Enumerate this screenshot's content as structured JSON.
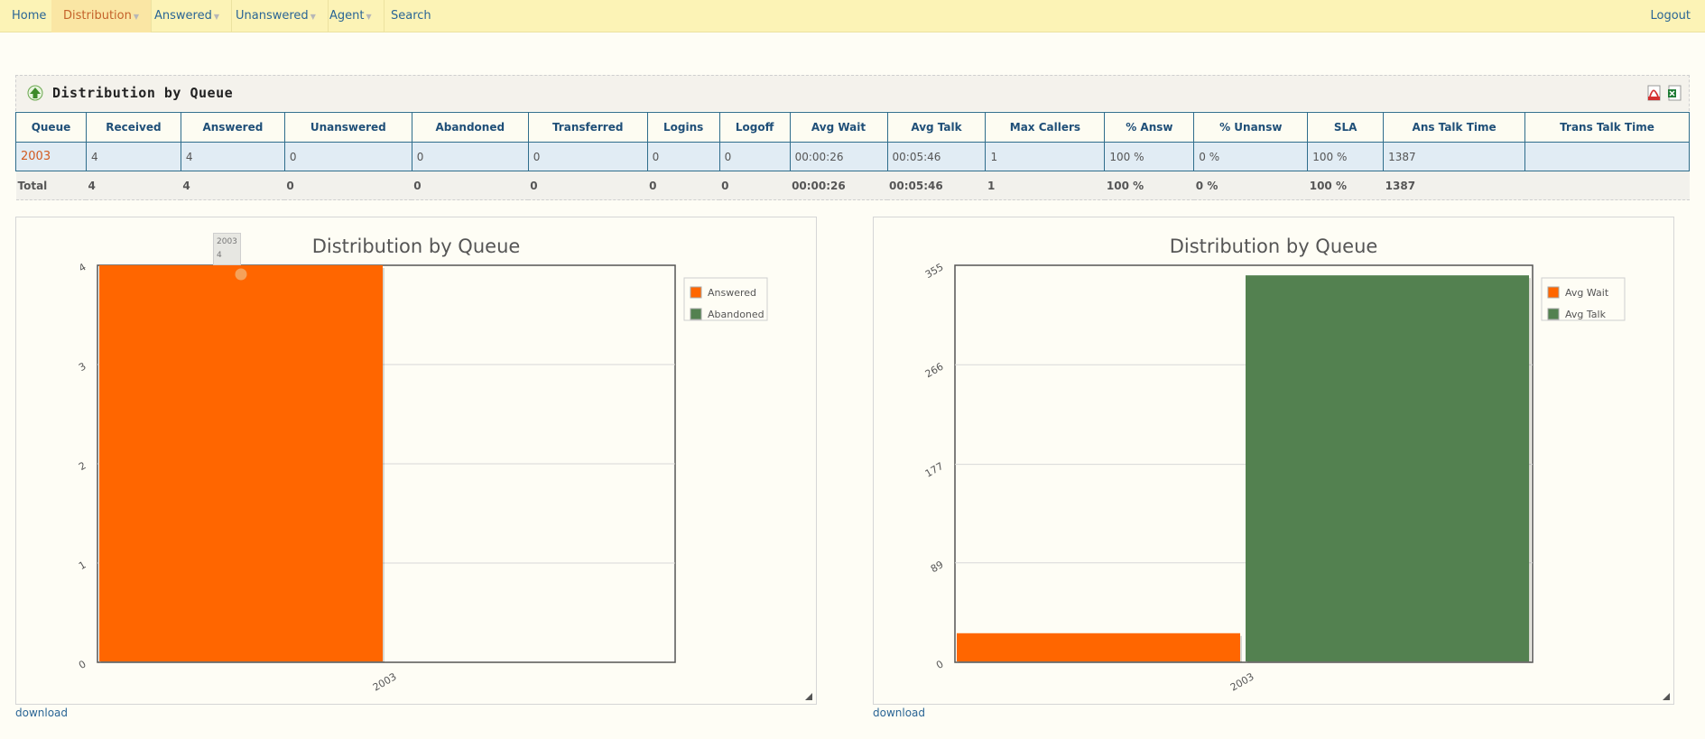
{
  "nav": {
    "items": [
      {
        "label": "Home"
      },
      {
        "label": "Distribution"
      },
      {
        "label": "Answered"
      },
      {
        "label": "Unanswered"
      },
      {
        "label": "Agent"
      },
      {
        "label": "Search"
      }
    ],
    "logout": "Logout",
    "active": "Distribution"
  },
  "report": {
    "title": "Distribution by Queue",
    "columns": [
      "Queue",
      "Received",
      "Answered",
      "Unanswered",
      "Abandoned",
      "Transferred",
      "Logins",
      "Logoff",
      "Avg Wait",
      "Avg Talk",
      "Max Callers",
      "% Answ",
      "% Unansw",
      "SLA",
      "Ans Talk Time",
      "Trans Talk Time"
    ],
    "rows": [
      [
        "2003",
        "4",
        "4",
        "0",
        "0",
        "0",
        "0",
        "0",
        "00:00:26",
        "00:05:46",
        "1",
        "100 %",
        "0 %",
        "100 %",
        "1387",
        ""
      ]
    ],
    "total": [
      "Total",
      "4",
      "4",
      "0",
      "0",
      "0",
      "0",
      "0",
      "00:00:26",
      "00:05:46",
      "1",
      "100 %",
      "0 %",
      "100 %",
      "1387",
      ""
    ]
  },
  "download_label": "download",
  "tooltip": {
    "category": "2003",
    "value": "4"
  },
  "colors": {
    "orange": "#ff6600",
    "green": "#538150"
  },
  "chart_data": [
    {
      "type": "bar",
      "title": "Distribution by Queue",
      "categories": [
        "2003"
      ],
      "series": [
        {
          "name": "Answered",
          "values": [
            4
          ],
          "color": "#ff6600"
        },
        {
          "name": "Abandoned",
          "values": [
            0
          ],
          "color": "#538150"
        }
      ],
      "yticks": [
        "0",
        "1",
        "2",
        "3",
        "4"
      ],
      "ylim": [
        0,
        4
      ],
      "grid": true,
      "legend": "top-right"
    },
    {
      "type": "bar",
      "title": "Distribution by Queue",
      "categories": [
        "2003"
      ],
      "series": [
        {
          "name": "Avg Wait",
          "values": [
            26
          ],
          "color": "#ff6600"
        },
        {
          "name": "Avg Talk",
          "values": [
            346
          ],
          "color": "#538150"
        }
      ],
      "yticks": [
        "0",
        "89",
        "177",
        "266",
        "355"
      ],
      "ylim": [
        0,
        355
      ],
      "grid": true,
      "legend": "top-right"
    }
  ]
}
